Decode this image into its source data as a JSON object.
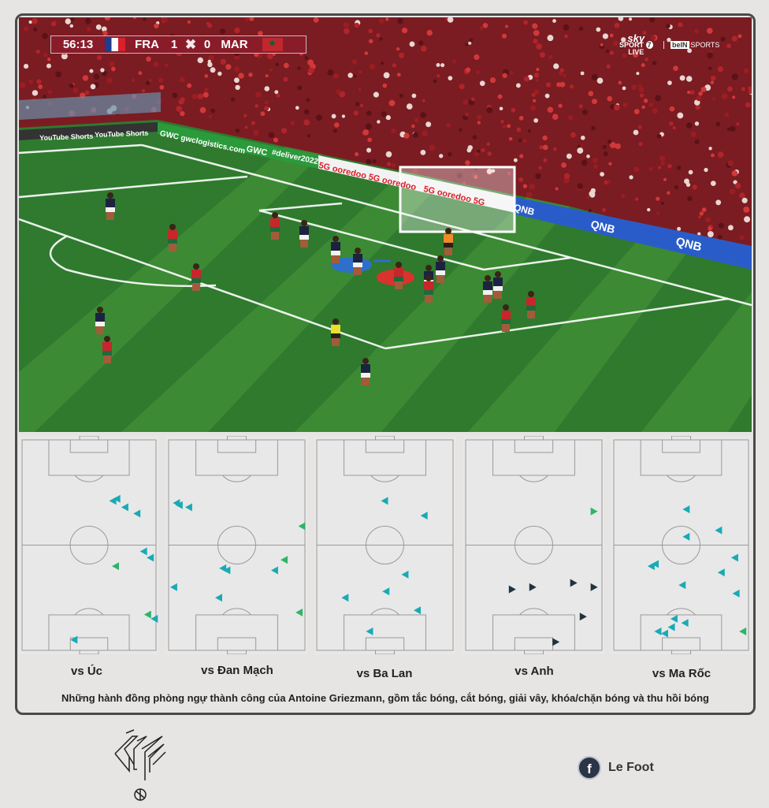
{
  "broadcast": {
    "scoreboard": {
      "time": "56:13",
      "home_team": "FRA",
      "home_score": "1",
      "away_score": "0",
      "away_team": "MAR"
    },
    "channel": {
      "brand": "sky",
      "line1": "SPORT",
      "number": "7",
      "line2": "LIVE",
      "partner_box": "beIN",
      "partner_text": "SPORTS"
    },
    "ad_boards": {
      "youtube": "YouTube Shorts",
      "gwc": "GWC  gwclogistics.com",
      "gwc2": "GWC",
      "deliver": "#deliver2022",
      "ooredoo": "5G ooredoo  5G ooredoo",
      "ooredoo2": "5G ooredoo  5G",
      "qnb1": "QNB",
      "qnb2": "QNB",
      "qnb3": "QNB"
    },
    "highlight_colors": {
      "france_player_marker": "#2e6fc9",
      "morocco_player_marker": "#d8332f"
    }
  },
  "chart_data": {
    "type": "scatter",
    "title": "",
    "caption": "Những hành đồng phòng ngự thành công của Antoine Griezmann, gồm tắc bóng, cắt bóng, giải vây, khóa/chặn bóng và thu hồi bóng",
    "coordinate_system": "pitch percent (x: 0 left touchline to 100 right touchline, y: 0 top goal line to 100 bottom goal line)",
    "colors": {
      "teal": "#19aab5",
      "green": "#2fb46a",
      "dark": "#1f3340"
    },
    "panels": [
      {
        "label": "vs Úc",
        "direction": "left",
        "points": [
          {
            "x": 68,
            "y": 29,
            "c": "teal"
          },
          {
            "x": 71,
            "y": 28,
            "c": "teal"
          },
          {
            "x": 77,
            "y": 32,
            "c": "teal"
          },
          {
            "x": 86,
            "y": 35,
            "c": "teal"
          },
          {
            "x": 91,
            "y": 53,
            "c": "teal"
          },
          {
            "x": 96,
            "y": 56,
            "c": "teal"
          },
          {
            "x": 70,
            "y": 60,
            "c": "green"
          },
          {
            "x": 94,
            "y": 83,
            "c": "green"
          },
          {
            "x": 99,
            "y": 85,
            "c": "teal"
          },
          {
            "x": 39,
            "y": 95,
            "c": "teal"
          }
        ]
      },
      {
        "label": "vs Đan Mạch",
        "direction": "left",
        "points": [
          {
            "x": 6,
            "y": 30,
            "c": "teal"
          },
          {
            "x": 8,
            "y": 31,
            "c": "teal"
          },
          {
            "x": 15,
            "y": 32,
            "c": "teal"
          },
          {
            "x": 98,
            "y": 41,
            "c": "green"
          },
          {
            "x": 85,
            "y": 57,
            "c": "green"
          },
          {
            "x": 40,
            "y": 61,
            "c": "teal"
          },
          {
            "x": 43,
            "y": 62,
            "c": "teal"
          },
          {
            "x": 78,
            "y": 62,
            "c": "teal"
          },
          {
            "x": 4,
            "y": 70,
            "c": "teal"
          },
          {
            "x": 37,
            "y": 75,
            "c": "teal"
          },
          {
            "x": 96,
            "y": 82,
            "c": "green"
          }
        ]
      },
      {
        "label": "vs Ba Lan",
        "direction": "left",
        "points": [
          {
            "x": 50,
            "y": 29,
            "c": "teal"
          },
          {
            "x": 79,
            "y": 36,
            "c": "teal"
          },
          {
            "x": 65,
            "y": 64,
            "c": "teal"
          },
          {
            "x": 51,
            "y": 72,
            "c": "teal"
          },
          {
            "x": 21,
            "y": 75,
            "c": "teal"
          },
          {
            "x": 74,
            "y": 81,
            "c": "teal"
          },
          {
            "x": 39,
            "y": 91,
            "c": "teal"
          }
        ]
      },
      {
        "label": "vs Anh",
        "direction": "right",
        "points": [
          {
            "x": 94,
            "y": 34,
            "c": "green"
          },
          {
            "x": 34,
            "y": 71,
            "c": "dark"
          },
          {
            "x": 49,
            "y": 70,
            "c": "dark"
          },
          {
            "x": 79,
            "y": 68,
            "c": "dark"
          },
          {
            "x": 94,
            "y": 70,
            "c": "dark"
          },
          {
            "x": 86,
            "y": 84,
            "c": "dark"
          },
          {
            "x": 66,
            "y": 96,
            "c": "dark"
          }
        ]
      },
      {
        "label": "vs Ma Rốc",
        "direction": "left",
        "points": [
          {
            "x": 54,
            "y": 33,
            "c": "teal"
          },
          {
            "x": 78,
            "y": 43,
            "c": "teal"
          },
          {
            "x": 54,
            "y": 46,
            "c": "teal"
          },
          {
            "x": 90,
            "y": 56,
            "c": "teal"
          },
          {
            "x": 28,
            "y": 60,
            "c": "teal"
          },
          {
            "x": 31,
            "y": 59,
            "c": "teal"
          },
          {
            "x": 80,
            "y": 63,
            "c": "teal"
          },
          {
            "x": 51,
            "y": 69,
            "c": "teal"
          },
          {
            "x": 91,
            "y": 73,
            "c": "teal"
          },
          {
            "x": 45,
            "y": 85,
            "c": "teal"
          },
          {
            "x": 53,
            "y": 87,
            "c": "teal"
          },
          {
            "x": 43,
            "y": 89,
            "c": "teal"
          },
          {
            "x": 33,
            "y": 91,
            "c": "teal"
          },
          {
            "x": 38,
            "y": 92,
            "c": "teal"
          },
          {
            "x": 96,
            "y": 91,
            "c": "green"
          }
        ]
      }
    ]
  },
  "footer": {
    "logo_text": "LF",
    "facebook_label": "f",
    "page_name": "Le Foot"
  }
}
